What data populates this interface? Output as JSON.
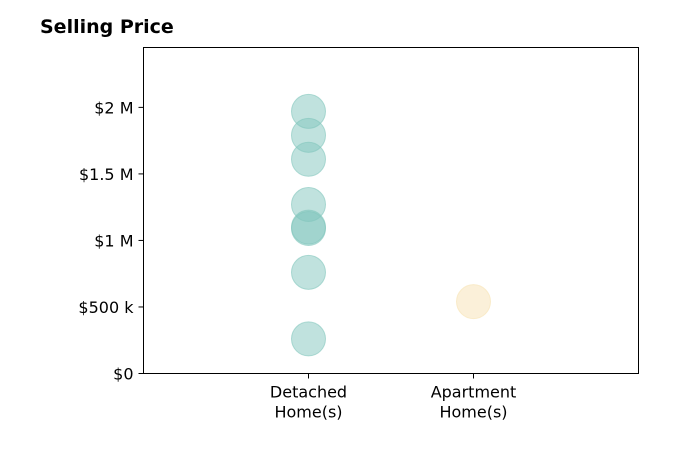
{
  "chart_data": {
    "type": "scatter",
    "title": "Selling Price",
    "xlabel": "",
    "ylabel": "",
    "categories": [
      [
        "Detached",
        "Home(s)"
      ],
      [
        "Apartment",
        "Home(s)"
      ]
    ],
    "y_ticks": [
      {
        "value": 0,
        "label": "$0"
      },
      {
        "value": 500000,
        "label": "$500 k"
      },
      {
        "value": 1000000,
        "label": "$1 M"
      },
      {
        "value": 1500000,
        "label": "$1.5 M"
      },
      {
        "value": 2000000,
        "label": "$2 M"
      }
    ],
    "ylim": [
      0,
      2450000
    ],
    "xlim": [
      0,
      3
    ],
    "grid": false,
    "series": [
      {
        "category_index": 0,
        "color": "#82c6bd",
        "values": [
          1970000,
          1790000,
          1610000,
          1270000,
          1100000,
          1090000,
          760000,
          260000
        ]
      },
      {
        "category_index": 1,
        "color": "#f7e2b3",
        "values": [
          540000
        ]
      }
    ]
  }
}
